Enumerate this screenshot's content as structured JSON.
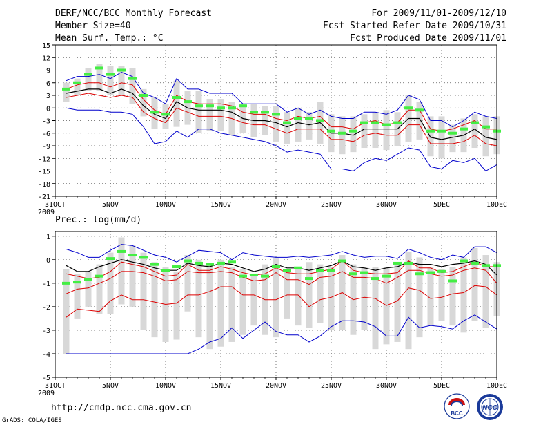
{
  "header": {
    "title": "DERF/NCC/BCC Monthly Forecast",
    "member_size": "Member Size=40",
    "variable": "Mean Surf. Temp.: °C",
    "period": "For 2009/11/01-2009/12/10",
    "refer_date": "Fcst Started Refer Date 2009/10/31",
    "produced_date": "Fcst Produced Date 2009/11/01"
  },
  "footer": {
    "url": "http://cmdp.ncc.cma.gov.cn",
    "credit": "GrADS: COLA/IGES",
    "logo_bcc": "BCC",
    "logo_ncc": "NCC"
  },
  "colors": {
    "max_min": "#0000cc",
    "spread": "#dd0000",
    "mean": "#000000",
    "box": "#d8d8d8",
    "median": "#44ee44"
  },
  "chart_data": [
    {
      "type": "line",
      "title": "Mean Surf. Temp.: °C",
      "x_ticks": [
        {
          "day": 0,
          "label": "31OCT"
        },
        {
          "day": 5,
          "label": "5NOV"
        },
        {
          "day": 10,
          "label": "10NOV"
        },
        {
          "day": 15,
          "label": "15NOV"
        },
        {
          "day": 20,
          "label": "20NOV"
        },
        {
          "day": 25,
          "label": "25NOV"
        },
        {
          "day": 30,
          "label": "30NOV"
        },
        {
          "day": 35,
          "label": "5DEC"
        },
        {
          "day": 40,
          "label": "10DEC"
        }
      ],
      "year_label": "2009",
      "x_range": [
        0,
        40
      ],
      "y_range": [
        -21,
        15
      ],
      "y_ticks": [
        15,
        12,
        9,
        6,
        3,
        0,
        -3,
        -6,
        -9,
        -12,
        -15,
        -18,
        -21
      ],
      "days": [
        1,
        2,
        3,
        4,
        5,
        6,
        7,
        8,
        9,
        10,
        11,
        12,
        13,
        14,
        15,
        16,
        17,
        18,
        19,
        20,
        21,
        22,
        23,
        24,
        25,
        26,
        27,
        28,
        29,
        30,
        31,
        32,
        33,
        34,
        35,
        36,
        37,
        38,
        39,
        40
      ],
      "series": [
        {
          "name": "max",
          "values": [
            6.5,
            7.5,
            7.5,
            8.0,
            7.0,
            8.5,
            7.5,
            3.5,
            2.5,
            1.0,
            7.0,
            4.5,
            4.5,
            3.5,
            3.5,
            3.5,
            1.0,
            1.0,
            1.0,
            1.0,
            -1.0,
            0.0,
            -1.5,
            -0.5,
            -2.0,
            -2.5,
            -2.5,
            -1.0,
            -1.0,
            -1.5,
            -0.5,
            3.0,
            2.0,
            -3.0,
            -3.0,
            -4.5,
            -3.0,
            -1.0,
            -2.0,
            -2.5
          ]
        },
        {
          "name": "upper",
          "values": [
            4.5,
            5.5,
            6.0,
            6.0,
            5.0,
            6.0,
            5.5,
            2.0,
            -0.5,
            -1.5,
            3.0,
            1.5,
            1.0,
            1.0,
            1.0,
            0.5,
            -1.0,
            -1.5,
            -1.5,
            -2.5,
            -3.0,
            -2.0,
            -2.5,
            -2.0,
            -4.5,
            -4.5,
            -5.0,
            -3.5,
            -3.0,
            -4.0,
            -3.5,
            -0.5,
            -0.5,
            -5.0,
            -5.5,
            -5.0,
            -4.0,
            -3.0,
            -5.0,
            -5.0
          ]
        },
        {
          "name": "mean",
          "values": [
            3.5,
            4.0,
            4.5,
            4.5,
            3.5,
            4.5,
            3.5,
            0.5,
            -1.5,
            -2.5,
            1.5,
            0.0,
            -0.5,
            -0.5,
            -0.5,
            -1.0,
            -2.5,
            -3.0,
            -3.0,
            -3.5,
            -4.5,
            -3.5,
            -4.0,
            -3.5,
            -6.0,
            -6.0,
            -6.5,
            -5.0,
            -5.0,
            -5.0,
            -5.0,
            -2.5,
            -2.5,
            -7.0,
            -7.5,
            -7.0,
            -6.5,
            -5.0,
            -7.0,
            -7.5
          ]
        },
        {
          "name": "lower",
          "values": [
            2.5,
            3.0,
            3.5,
            3.0,
            2.5,
            3.0,
            2.5,
            -1.0,
            -2.5,
            -3.5,
            0.0,
            -1.0,
            -2.0,
            -2.0,
            -2.0,
            -2.5,
            -3.5,
            -4.0,
            -4.0,
            -5.0,
            -6.0,
            -5.0,
            -5.0,
            -5.0,
            -7.5,
            -7.5,
            -8.0,
            -6.5,
            -6.0,
            -6.5,
            -6.5,
            -4.0,
            -4.0,
            -8.5,
            -8.5,
            -8.5,
            -8.0,
            -6.5,
            -8.5,
            -9.0
          ]
        },
        {
          "name": "min",
          "values": [
            0.0,
            -0.5,
            -0.5,
            -0.5,
            -1.0,
            -1.0,
            -1.5,
            -4.5,
            -8.5,
            -8.0,
            -5.5,
            -7.0,
            -5.0,
            -5.0,
            -6.0,
            -6.5,
            -7.0,
            -7.5,
            -8.0,
            -9.0,
            -10.5,
            -10.0,
            -10.5,
            -11.0,
            -14.5,
            -14.5,
            -15.0,
            -13.0,
            -12.0,
            -12.5,
            -11.0,
            -9.5,
            -10.0,
            -14.0,
            -14.5,
            -12.5,
            -13.0,
            -12.0,
            -15.0,
            -13.5
          ]
        }
      ],
      "box_top": [
        6.0,
        7.0,
        9.5,
        10.5,
        10.0,
        10.0,
        9.5,
        4.5,
        2.5,
        1.0,
        6.5,
        4.0,
        4.0,
        2.0,
        2.0,
        1.5,
        1.0,
        1.0,
        0.5,
        0.5,
        -1.0,
        0.0,
        -1.0,
        1.5,
        -1.5,
        -2.0,
        -2.0,
        -1.5,
        -1.0,
        -0.5,
        -1.0,
        3.0,
        1.5,
        -2.0,
        -2.0,
        -4.0,
        -2.5,
        -1.5,
        -2.0,
        -2.0
      ],
      "box_bottom": [
        1.5,
        3.0,
        4.0,
        4.0,
        3.0,
        3.0,
        1.0,
        -2.0,
        -5.0,
        -5.0,
        -4.5,
        -4.0,
        -6.0,
        -5.5,
        -5.5,
        -6.5,
        -6.0,
        -7.0,
        -6.5,
        -8.0,
        -8.5,
        -8.0,
        -7.5,
        -8.5,
        -10.5,
        -11.0,
        -10.5,
        -9.5,
        -9.5,
        -10.0,
        -9.0,
        -8.0,
        -7.5,
        -11.5,
        -12.0,
        -10.5,
        -10.5,
        -9.5,
        -11.5,
        -11.0
      ],
      "median": [
        4.5,
        6.0,
        8.0,
        9.5,
        8.0,
        9.0,
        7.0,
        3.0,
        -1.0,
        -1.5,
        2.5,
        1.5,
        0.5,
        0.5,
        0.0,
        0.0,
        0.5,
        -1.0,
        -1.0,
        -1.5,
        -3.5,
        -2.5,
        -2.5,
        -3.0,
        -5.5,
        -6.0,
        -5.5,
        -3.5,
        -3.5,
        -4.0,
        -3.5,
        0.0,
        -0.5,
        -5.5,
        -5.5,
        -6.0,
        -5.0,
        -3.5,
        -4.5,
        -5.5
      ]
    },
    {
      "type": "line",
      "title": "Prec.: log(mm/d)",
      "x_ticks": [
        {
          "day": 0,
          "label": "31OCT"
        },
        {
          "day": 5,
          "label": "5NOV"
        },
        {
          "day": 10,
          "label": "10NOV"
        },
        {
          "day": 15,
          "label": "15NOV"
        },
        {
          "day": 20,
          "label": "20NOV"
        },
        {
          "day": 25,
          "label": "25NOV"
        },
        {
          "day": 30,
          "label": "30NOV"
        },
        {
          "day": 35,
          "label": "5DEC"
        },
        {
          "day": 40,
          "label": "10DEC"
        }
      ],
      "year_label": "2009",
      "x_range": [
        0,
        40
      ],
      "y_range": [
        -5,
        1.2
      ],
      "y_ticks": [
        1,
        0,
        -1,
        -2,
        -3,
        -4,
        -5
      ],
      "days": [
        1,
        2,
        3,
        4,
        5,
        6,
        7,
        8,
        9,
        10,
        11,
        12,
        13,
        14,
        15,
        16,
        17,
        18,
        19,
        20,
        21,
        22,
        23,
        24,
        25,
        26,
        27,
        28,
        29,
        30,
        31,
        32,
        33,
        34,
        35,
        36,
        37,
        38,
        39,
        40
      ],
      "series": [
        {
          "name": "max",
          "values": [
            0.45,
            0.3,
            0.1,
            0.1,
            0.4,
            0.65,
            0.6,
            0.4,
            0.2,
            0.1,
            -0.1,
            0.15,
            0.4,
            0.35,
            0.3,
            0.0,
            0.3,
            0.2,
            0.15,
            0.1,
            0.1,
            0.15,
            0.1,
            0.15,
            0.2,
            0.35,
            0.2,
            0.1,
            0.15,
            0.15,
            0.05,
            0.45,
            0.3,
            0.1,
            0.0,
            0.2,
            0.1,
            0.55,
            0.55,
            0.3
          ]
        },
        {
          "name": "upper",
          "values": [
            -0.6,
            -0.7,
            -0.8,
            -0.75,
            -0.5,
            -0.1,
            -0.2,
            -0.3,
            -0.5,
            -0.7,
            -0.65,
            -0.2,
            -0.45,
            -0.45,
            -0.3,
            -0.4,
            -0.55,
            -0.65,
            -0.6,
            -0.35,
            -0.55,
            -0.6,
            -0.6,
            -0.5,
            -0.4,
            -0.05,
            -0.45,
            -0.55,
            -0.6,
            -0.6,
            -0.55,
            -0.05,
            -0.35,
            -0.35,
            -0.55,
            -0.5,
            -0.3,
            -0.1,
            -0.3,
            -0.3
          ]
        },
        {
          "name": "mean",
          "values": [
            -0.25,
            -0.5,
            -0.5,
            -0.3,
            -0.15,
            0.0,
            -0.1,
            -0.2,
            -0.35,
            -0.45,
            -0.45,
            -0.15,
            -0.25,
            -0.3,
            -0.15,
            -0.2,
            -0.35,
            -0.5,
            -0.4,
            -0.2,
            -0.35,
            -0.35,
            -0.45,
            -0.35,
            -0.25,
            -0.05,
            -0.3,
            -0.35,
            -0.45,
            -0.35,
            -0.3,
            -0.1,
            -0.2,
            -0.2,
            -0.3,
            -0.2,
            -0.15,
            -0.05,
            -0.2,
            -0.65
          ]
        },
        {
          "name": "lower",
          "values": [
            -1.45,
            -1.25,
            -1.2,
            -1.0,
            -0.8,
            -0.5,
            -0.5,
            -0.55,
            -0.7,
            -0.9,
            -0.85,
            -0.5,
            -0.55,
            -0.55,
            -0.5,
            -0.55,
            -0.75,
            -0.9,
            -0.85,
            -0.55,
            -0.85,
            -0.85,
            -1.05,
            -0.75,
            -0.7,
            -0.5,
            -0.75,
            -0.75,
            -0.8,
            -1.0,
            -0.75,
            -0.45,
            -0.45,
            -0.6,
            -0.7,
            -0.65,
            -0.45,
            -0.35,
            -0.45,
            -1.0
          ]
        },
        {
          "name": "low_red",
          "values": [
            -2.45,
            -2.1,
            -2.15,
            -2.2,
            -1.75,
            -1.5,
            -1.7,
            -1.7,
            -1.8,
            -1.9,
            -1.85,
            -1.5,
            -1.5,
            -1.35,
            -1.15,
            -1.15,
            -1.5,
            -1.5,
            -1.7,
            -1.7,
            -1.5,
            -1.5,
            -2.0,
            -1.7,
            -1.6,
            -1.4,
            -1.7,
            -1.6,
            -1.65,
            -1.95,
            -1.75,
            -1.2,
            -1.3,
            -1.65,
            -1.6,
            -1.45,
            -1.4,
            -1.1,
            -1.15,
            -1.5
          ]
        },
        {
          "name": "min",
          "values": [
            -4.0,
            -4.0,
            -4.0,
            -4.0,
            -4.0,
            -4.0,
            -4.0,
            -4.0,
            -4.0,
            -4.0,
            -4.0,
            -4.0,
            -3.8,
            -3.5,
            -3.35,
            -2.9,
            -3.35,
            -3.0,
            -2.65,
            -3.05,
            -3.2,
            -3.2,
            -3.5,
            -3.25,
            -2.85,
            -2.6,
            -2.6,
            -2.65,
            -2.85,
            -3.25,
            -3.25,
            -2.45,
            -2.9,
            -2.8,
            -2.85,
            -2.95,
            -2.6,
            -2.35,
            -2.65,
            -2.95
          ]
        }
      ],
      "box_top": [
        -0.4,
        -0.6,
        -0.5,
        -0.2,
        0.3,
        0.95,
        0.6,
        0.3,
        -0.1,
        -0.3,
        -0.5,
        0.2,
        0.0,
        -0.15,
        0.0,
        -0.3,
        -0.4,
        -0.6,
        -0.2,
        0.05,
        -0.5,
        -0.3,
        -0.1,
        -0.2,
        -0.3,
        0.2,
        -0.2,
        -0.3,
        -0.3,
        -0.3,
        -0.1,
        0.35,
        0.1,
        -0.3,
        -0.4,
        -0.3,
        0.1,
        0.5,
        0.2,
        -0.1
      ],
      "box_bottom": [
        -4.0,
        -2.5,
        -2.0,
        -2.3,
        -2.3,
        -1.9,
        -2.0,
        -3.0,
        -3.3,
        -3.5,
        -3.4,
        -2.2,
        -3.3,
        -3.8,
        -3.7,
        -3.5,
        -3.2,
        -2.8,
        -3.2,
        -3.3,
        -2.5,
        -2.8,
        -2.9,
        -2.7,
        -3.0,
        -3.0,
        -3.2,
        -3.0,
        -3.8,
        -3.6,
        -3.5,
        -3.8,
        -3.3,
        -2.8,
        -2.6,
        -2.8,
        -3.1,
        -2.6,
        -2.9,
        -2.4
      ],
      "median": [
        -1.0,
        -0.95,
        -0.85,
        -0.7,
        0.05,
        0.35,
        0.2,
        0.1,
        -0.2,
        -0.45,
        -0.3,
        -0.05,
        -0.15,
        -0.2,
        -0.15,
        -0.1,
        -0.7,
        -0.65,
        -0.7,
        -0.3,
        -0.45,
        -0.35,
        -0.8,
        -0.45,
        -0.45,
        -0.05,
        -0.6,
        -0.55,
        -0.8,
        -0.7,
        -0.15,
        -0.15,
        -0.6,
        -0.55,
        -0.5,
        -0.9,
        -0.05,
        -0.15,
        -0.25,
        -0.25
      ]
    }
  ]
}
